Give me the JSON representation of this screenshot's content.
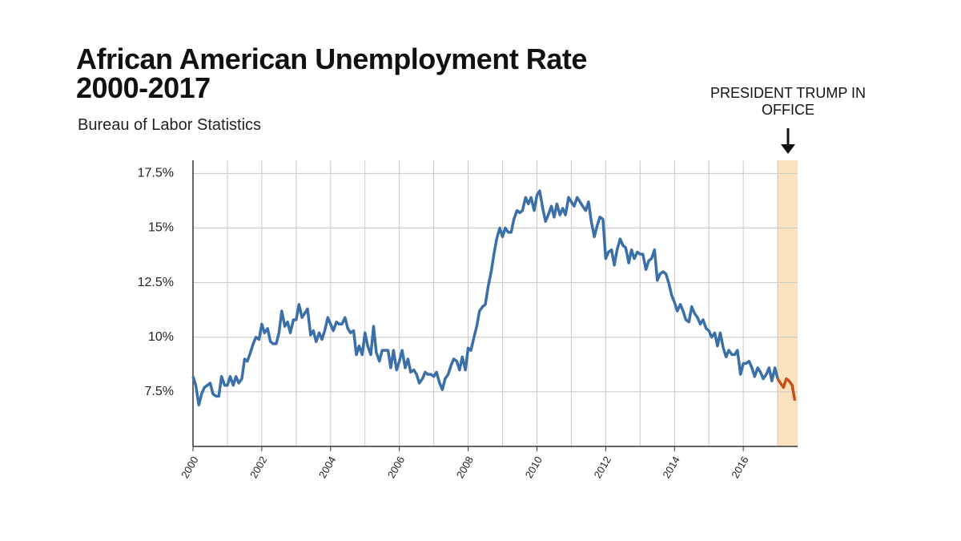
{
  "chart_data": {
    "type": "line",
    "title": "African American Unemployment Rate 2000-2017",
    "subtitle": "Bureau of Labor Statistics",
    "annotation": "PRESIDENT TRUMP IN OFFICE",
    "highlight": {
      "x": [
        2017,
        2017.58
      ],
      "color": "#fbe3bf"
    },
    "xlim": [
      2000,
      2017.58
    ],
    "xticks": [
      2000,
      2002,
      2004,
      2006,
      2008,
      2010,
      2012,
      2014,
      2016
    ],
    "xgrid": [
      2000,
      2001,
      2002,
      2003,
      2004,
      2005,
      2006,
      2007,
      2008,
      2009,
      2010,
      2011,
      2012,
      2013,
      2014,
      2015,
      2016,
      2017
    ],
    "ylim": [
      5,
      18.1
    ],
    "yticks": [
      {
        "value": 7.5,
        "label": "7.5%"
      },
      {
        "value": 10,
        "label": "10%"
      },
      {
        "value": 12.5,
        "label": "12.5%"
      },
      {
        "value": 15,
        "label": "15%"
      },
      {
        "value": 17.5,
        "label": "17.5%"
      }
    ],
    "grid": true,
    "series": [
      {
        "color": "#3a6fa8",
        "x": [
          2000,
          2000.08,
          2000.17,
          2000.25,
          2000.33,
          2000.42,
          2000.5,
          2000.58,
          2000.67,
          2000.75,
          2000.83,
          2000.92,
          2001,
          2001.08,
          2001.17,
          2001.25,
          2001.33,
          2001.42,
          2001.5,
          2001.58,
          2001.67,
          2001.75,
          2001.83,
          2001.92,
          2002,
          2002.08,
          2002.17,
          2002.25,
          2002.33,
          2002.42,
          2002.5,
          2002.58,
          2002.67,
          2002.75,
          2002.83,
          2002.92,
          2003,
          2003.08,
          2003.17,
          2003.25,
          2003.33,
          2003.42,
          2003.5,
          2003.58,
          2003.67,
          2003.75,
          2003.83,
          2003.92,
          2004,
          2004.08,
          2004.17,
          2004.25,
          2004.33,
          2004.42,
          2004.5,
          2004.58,
          2004.67,
          2004.75,
          2004.83,
          2004.92,
          2005,
          2005.08,
          2005.17,
          2005.25,
          2005.33,
          2005.42,
          2005.5,
          2005.58,
          2005.67,
          2005.75,
          2005.83,
          2005.92,
          2006,
          2006.08,
          2006.17,
          2006.25,
          2006.33,
          2006.42,
          2006.5,
          2006.58,
          2006.67,
          2006.75,
          2006.83,
          2006.92,
          2007,
          2007.08,
          2007.17,
          2007.25,
          2007.33,
          2007.42,
          2007.5,
          2007.58,
          2007.67,
          2007.75,
          2007.83,
          2007.92,
          2008,
          2008.08,
          2008.17,
          2008.25,
          2008.33,
          2008.42,
          2008.5,
          2008.58,
          2008.67,
          2008.75,
          2008.83,
          2008.92,
          2009,
          2009.08,
          2009.17,
          2009.25,
          2009.33,
          2009.42,
          2009.5,
          2009.58,
          2009.67,
          2009.75,
          2009.83,
          2009.92,
          2010,
          2010.08,
          2010.17,
          2010.25,
          2010.33,
          2010.42,
          2010.5,
          2010.58,
          2010.67,
          2010.75,
          2010.83,
          2010.92,
          2011,
          2011.08,
          2011.17,
          2011.25,
          2011.33,
          2011.42,
          2011.5,
          2011.58,
          2011.67,
          2011.75,
          2011.83,
          2011.92,
          2012,
          2012.08,
          2012.17,
          2012.25,
          2012.33,
          2012.42,
          2012.5,
          2012.58,
          2012.67,
          2012.75,
          2012.83,
          2012.92,
          2013,
          2013.08,
          2013.17,
          2013.25,
          2013.33,
          2013.42,
          2013.5,
          2013.58,
          2013.67,
          2013.75,
          2013.83,
          2013.92,
          2014,
          2014.08,
          2014.17,
          2014.25,
          2014.33,
          2014.42,
          2014.5,
          2014.58,
          2014.67,
          2014.75,
          2014.83,
          2014.92,
          2015,
          2015.08,
          2015.17,
          2015.25,
          2015.33,
          2015.42,
          2015.5,
          2015.58,
          2015.67,
          2015.75,
          2015.83,
          2015.92,
          2016,
          2016.08,
          2016.17,
          2016.25,
          2016.33,
          2016.42,
          2016.5,
          2016.58,
          2016.67,
          2016.75,
          2016.83,
          2016.92,
          2017
        ],
        "values": [
          8.2,
          7.8,
          6.9,
          7.4,
          7.7,
          7.8,
          7.9,
          7.4,
          7.3,
          7.3,
          8.2,
          7.8,
          7.8,
          8.2,
          7.8,
          8.2,
          7.9,
          8.1,
          9.0,
          8.9,
          9.3,
          9.7,
          10.0,
          9.9,
          10.6,
          10.2,
          10.4,
          9.8,
          9.7,
          9.7,
          10.2,
          11.2,
          10.5,
          10.7,
          10.2,
          10.8,
          10.8,
          11.5,
          10.9,
          11.1,
          11.3,
          10.1,
          10.3,
          9.8,
          10.2,
          9.9,
          10.3,
          10.9,
          10.6,
          10.3,
          10.7,
          10.6,
          10.6,
          10.9,
          10.4,
          10.2,
          10.3,
          9.2,
          9.6,
          9.2,
          10.2,
          9.6,
          9.2,
          10.5,
          9.3,
          8.9,
          9.4,
          9.4,
          9.4,
          8.6,
          9.4,
          8.5,
          8.9,
          9.4,
          8.6,
          9.0,
          8.4,
          8.5,
          8.3,
          7.9,
          8.1,
          8.4,
          8.3,
          8.3,
          8.2,
          8.4,
          7.9,
          7.6,
          8.1,
          8.3,
          8.7,
          9.0,
          8.9,
          8.5,
          9.1,
          8.5,
          9.5,
          9.4,
          10.0,
          10.5,
          11.2,
          11.4,
          11.5,
          12.3,
          13.0,
          13.8,
          14.5,
          15.0,
          14.6,
          15.0,
          14.8,
          14.8,
          15.4,
          15.8,
          15.7,
          15.8,
          16.4,
          16.1,
          16.4,
          15.8,
          16.5,
          16.7,
          15.9,
          15.3,
          15.6,
          16.0,
          15.5,
          16.1,
          15.6,
          15.9,
          15.6,
          16.4,
          16.2,
          16.0,
          16.4,
          16.2,
          16.0,
          15.8,
          16.2,
          15.3,
          14.6,
          15.1,
          15.5,
          15.4,
          13.6,
          13.9,
          14.0,
          13.3,
          14.0,
          14.5,
          14.2,
          14.1,
          13.4,
          14.0,
          13.6,
          13.9,
          13.8,
          13.8,
          13.1,
          13.5,
          13.6,
          14.0,
          12.6,
          12.9,
          13.0,
          12.9,
          12.5,
          11.9,
          11.6,
          11.2,
          11.5,
          11.2,
          10.8,
          10.7,
          11.4,
          11.1,
          10.9,
          10.6,
          10.8,
          10.4,
          10.3,
          10.0,
          10.2,
          9.6,
          10.2,
          9.5,
          9.1,
          9.4,
          9.2,
          9.2,
          9.4,
          8.3,
          8.8,
          8.8,
          8.9,
          8.6,
          8.2,
          8.6,
          8.4,
          8.1,
          8.3,
          8.6,
          8.0,
          8.6,
          8.1
        ]
      },
      {
        "color": "#c8501a",
        "x": [
          2017,
          2017.08,
          2017.17,
          2017.25,
          2017.33,
          2017.42,
          2017.5
        ],
        "values": [
          8.1,
          7.9,
          7.7,
          8.1,
          8.0,
          7.8,
          7.1
        ]
      }
    ]
  }
}
